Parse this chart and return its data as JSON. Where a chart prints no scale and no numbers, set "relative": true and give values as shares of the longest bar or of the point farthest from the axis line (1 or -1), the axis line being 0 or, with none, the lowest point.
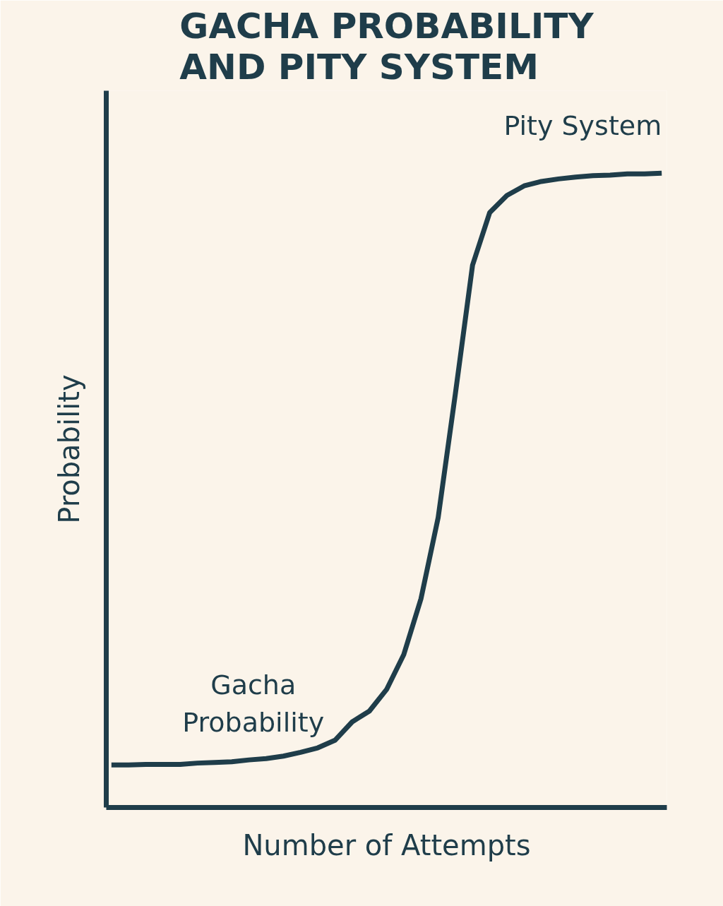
{
  "chart_data": {
    "type": "line",
    "title": "GACHA PROBABILITY AND PITY SYSTEM",
    "xlabel": "Number of Attempts",
    "ylabel": "Probability",
    "relative": true,
    "marker": "none",
    "line_style": "solid",
    "categories": [
      null,
      null,
      null,
      null,
      null,
      null,
      null,
      null,
      null,
      null,
      null,
      null,
      null,
      null,
      null,
      null,
      null,
      null,
      null,
      null,
      null,
      null,
      null,
      null,
      null,
      null,
      null,
      null,
      null,
      null,
      null,
      null,
      null
    ],
    "series": [
      {
        "color": "#1f3d4a",
        "values": [
          0.067,
          0.067,
          0.068,
          0.068,
          0.068,
          0.07,
          0.071,
          0.072,
          0.075,
          0.077,
          0.081,
          0.087,
          0.094,
          0.106,
          0.135,
          0.152,
          0.186,
          0.241,
          0.329,
          0.457,
          0.652,
          0.855,
          0.938,
          0.965,
          0.98,
          0.987,
          0.991,
          0.994,
          0.996,
          0.997,
          0.999,
          0.999,
          1
        ]
      }
    ],
    "annotations": [
      "Gacha Probability",
      "Pity System"
    ]
  }
}
